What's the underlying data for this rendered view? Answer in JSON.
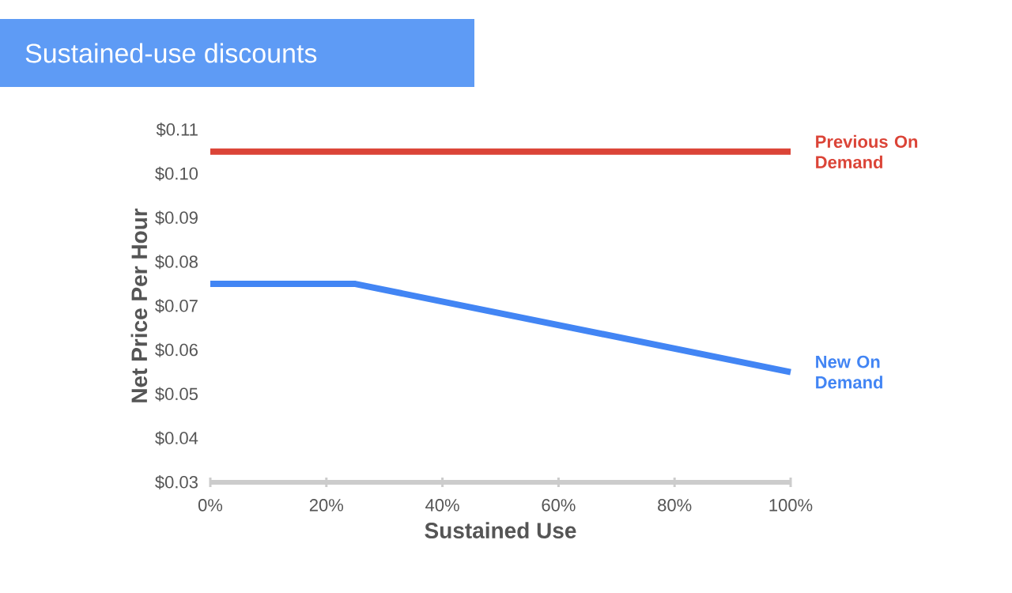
{
  "chart_data": {
    "type": "line",
    "title": "Sustained-use discounts",
    "xlabel": "Sustained Use",
    "ylabel": "Net Price Per Hour",
    "xlim": [
      0,
      100
    ],
    "ylim": [
      0.03,
      0.11
    ],
    "xticks": [
      {
        "value": 0,
        "label": "0%"
      },
      {
        "value": 20,
        "label": "20%"
      },
      {
        "value": 40,
        "label": "40%"
      },
      {
        "value": 60,
        "label": "60%"
      },
      {
        "value": 80,
        "label": "80%"
      },
      {
        "value": 100,
        "label": "100%"
      }
    ],
    "yticks": [
      {
        "value": 0.03,
        "label": "$0.03"
      },
      {
        "value": 0.04,
        "label": "$0.04"
      },
      {
        "value": 0.05,
        "label": "$0.05"
      },
      {
        "value": 0.06,
        "label": "$0.06"
      },
      {
        "value": 0.07,
        "label": "$0.07"
      },
      {
        "value": 0.08,
        "label": "$0.08"
      },
      {
        "value": 0.09,
        "label": "$0.09"
      },
      {
        "value": 0.1,
        "label": "$0.10"
      },
      {
        "value": 0.11,
        "label": "$0.11"
      }
    ],
    "grid": false,
    "legend": false,
    "marker": "none",
    "line_style": "solid",
    "series": [
      {
        "name": "Previous On Demand",
        "color": "#db4437",
        "x": [
          0,
          100
        ],
        "values": [
          0.105,
          0.105
        ]
      },
      {
        "name": "New On Demand",
        "color": "#4285f4",
        "x": [
          0,
          25,
          100
        ],
        "values": [
          0.075,
          0.075,
          0.055
        ]
      }
    ]
  }
}
